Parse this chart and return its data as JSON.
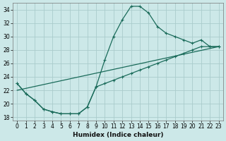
{
  "xlabel": "Humidex (Indice chaleur)",
  "background_color": "#cce8e8",
  "grid_color": "#aacccc",
  "line_color": "#1a6b5a",
  "xlim": [
    -0.5,
    23.5
  ],
  "ylim": [
    17.5,
    35
  ],
  "yticks": [
    18,
    20,
    22,
    24,
    26,
    28,
    30,
    32,
    34
  ],
  "xticks": [
    0,
    1,
    2,
    3,
    4,
    5,
    6,
    7,
    8,
    9,
    10,
    11,
    12,
    13,
    14,
    15,
    16,
    17,
    18,
    19,
    20,
    21,
    22,
    23
  ],
  "line1_x": [
    0,
    1,
    2,
    3,
    4,
    5,
    6,
    7,
    8,
    9,
    10,
    11,
    12,
    13,
    14,
    15,
    16,
    17,
    18,
    19,
    20,
    21,
    22,
    23
  ],
  "line1_y": [
    23.0,
    21.5,
    20.5,
    19.2,
    18.8,
    18.5,
    18.5,
    18.5,
    19.5,
    22.5,
    26.5,
    30.0,
    32.5,
    34.5,
    34.5,
    33.5,
    31.5,
    30.5,
    30.0,
    29.5,
    29.0,
    29.5,
    28.5,
    28.5
  ],
  "line2_x": [
    0,
    1,
    2,
    3,
    4,
    5,
    6,
    7,
    8,
    9,
    10,
    11,
    12,
    13,
    14,
    15,
    16,
    17,
    18,
    19,
    20,
    21,
    22,
    23
  ],
  "line2_y": [
    23.0,
    21.5,
    20.5,
    19.2,
    18.8,
    18.5,
    18.5,
    18.5,
    19.5,
    22.5,
    23.0,
    23.5,
    24.0,
    24.5,
    25.0,
    25.5,
    26.0,
    26.5,
    27.0,
    27.5,
    28.0,
    28.5,
    28.5,
    28.5
  ],
  "line3_x": [
    0,
    23
  ],
  "line3_y": [
    22.0,
    28.5
  ],
  "tick_fontsize": 5.5,
  "xlabel_fontsize": 6.5
}
